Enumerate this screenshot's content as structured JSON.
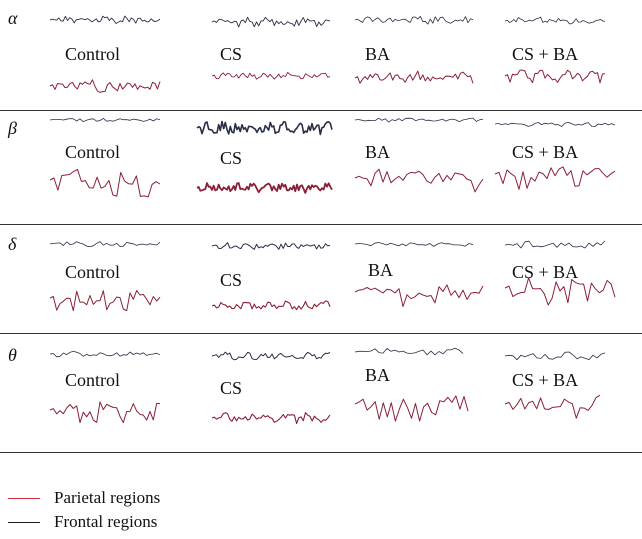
{
  "bands": [
    {
      "symbol": "α",
      "groups": [
        "Control",
        "CS",
        "BA",
        "CS + BA"
      ]
    },
    {
      "symbol": "β",
      "groups": [
        "Control",
        "CS",
        "BA",
        "CS + BA"
      ]
    },
    {
      "symbol": "δ",
      "groups": [
        "Control",
        "CS",
        "BA",
        "CS + BA"
      ]
    },
    {
      "symbol": "θ",
      "groups": [
        "Control",
        "CS",
        "BA",
        "CS + BA"
      ]
    }
  ],
  "legend": [
    {
      "label": "Parietal regions",
      "color": "#d22a3a"
    },
    {
      "label": "Frontal regions",
      "color": "#1a1a1a"
    }
  ],
  "colors": {
    "frontal_trace": "#2a2f45",
    "parietal_trace": "#8a2038"
  }
}
